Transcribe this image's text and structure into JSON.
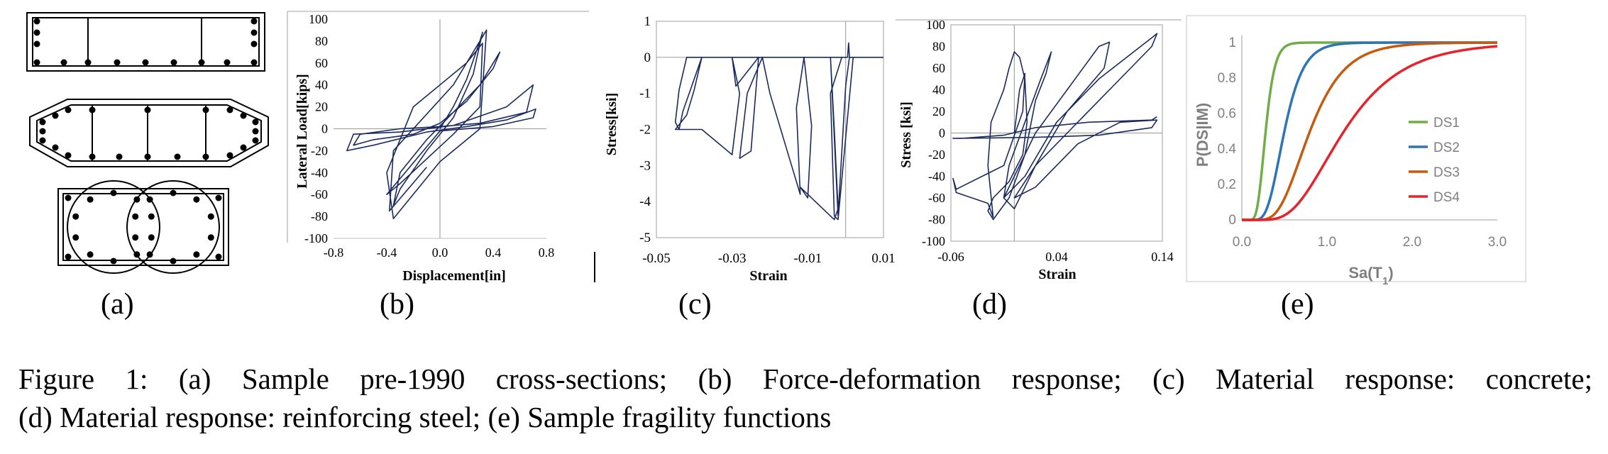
{
  "panels": {
    "a": {
      "label": "(a)"
    },
    "b": {
      "label": "(b)"
    },
    "c": {
      "label": "(c)"
    },
    "d": {
      "label": "(d)"
    },
    "e": {
      "label": "(e)"
    }
  },
  "caption": {
    "line1": "Figure 1: (a) Sample pre-1990 cross-sections; (b) Force-deformation response; (c) Material response: concrete;",
    "line2": "(d) Material response: reinforcing steel; (e) Sample fragility functions"
  },
  "colors": {
    "hysteresis": "#1b2a5e",
    "ds1": "#70ad47",
    "ds2": "#2e75b6",
    "ds3": "#c55a11",
    "ds4": "#e8222a"
  },
  "chart_data": [
    {
      "id": "b",
      "type": "line",
      "xlabel": "Displacement[in]",
      "ylabel": "Lateral Load[kips]",
      "xlim": [
        -0.8,
        0.8
      ],
      "ylim": [
        -100,
        100
      ],
      "xticks": [
        "-0.8",
        "-0.4",
        "0.0",
        "0.4",
        "0.8"
      ],
      "yticks": [
        "100",
        "80",
        "60",
        "40",
        "20",
        "0",
        "-20",
        "-40",
        "-60",
        "-80",
        "-100"
      ],
      "series": [
        {
          "x": [
            0,
            0.1,
            0.2,
            0.3,
            0.32,
            0.25,
            0.1,
            -0.1,
            -0.3,
            -0.35,
            -0.3,
            -0.1,
            0.1,
            0.3,
            0.45,
            0.4,
            0.2,
            0,
            -0.2,
            -0.5,
            -0.65,
            -0.6,
            -0.3,
            0,
            0.3,
            0.65,
            0.7,
            0.5,
            0.1,
            -0.3,
            -0.65,
            -0.7,
            -0.5,
            -0.1,
            0.2,
            0.5,
            0.72,
            0.7,
            0.4,
            0,
            -0.4,
            -0.3,
            0.1,
            0.3,
            0.32,
            0.2,
            -0.2,
            -0.4,
            -0.35,
            0,
            0.3,
            0.35,
            0.1,
            -0.35,
            -0.38,
            -0.1
          ],
          "y": [
            0,
            20,
            45,
            80,
            88,
            50,
            10,
            -20,
            -55,
            -70,
            -40,
            -10,
            15,
            40,
            70,
            55,
            25,
            5,
            -5,
            -10,
            -15,
            -5,
            0,
            2,
            5,
            15,
            40,
            20,
            3,
            -3,
            -5,
            -20,
            -15,
            -3,
            2,
            8,
            18,
            10,
            2,
            -2,
            -60,
            -50,
            -5,
            20,
            78,
            60,
            20,
            -40,
            -82,
            -30,
            0,
            90,
            40,
            -20,
            -75,
            -35
          ]
        }
      ]
    },
    {
      "id": "c",
      "type": "line",
      "xlabel": "Strain",
      "ylabel": "Stress[ksi]",
      "xlim": [
        -0.05,
        0.01
      ],
      "ylim": [
        -5,
        1
      ],
      "xticks": [
        "-0.05",
        "-0.03",
        "-0.01",
        "0.01"
      ],
      "yticks": [
        "1",
        "0",
        "-1",
        "-2",
        "-3",
        "-4",
        "-5"
      ],
      "series": [
        {
          "x": [
            0.01,
            0.002,
            0.001,
            0.0008,
            0.0005,
            0,
            -0.002,
            -0.042,
            -0.044,
            -0.045,
            -0.044,
            -0.043,
            -0.04,
            -0.038,
            -0.04,
            -0.042,
            -0.045,
            -0.044,
            -0.038,
            -0.03,
            -0.028,
            -0.03,
            -0.029,
            -0.023,
            -0.025,
            -0.028,
            -0.026,
            -0.022,
            -0.02,
            -0.012,
            -0.013,
            -0.011,
            -0.009,
            -0.01,
            -0.012,
            -0.008,
            -0.005,
            -0.003,
            -0.002,
            -0.003,
            -0.004,
            -0.002,
            0,
            0.001,
            0.002,
            -0.002,
            -0.003,
            -0.004,
            -0.001
          ],
          "y": [
            0,
            0,
            0,
            0.4,
            0,
            0,
            0,
            0,
            -0.9,
            -1.8,
            -2.0,
            -1.5,
            -0.6,
            0,
            -0.9,
            -1.6,
            -2.0,
            -2.0,
            -2.0,
            -2.7,
            -1.0,
            0,
            -0.8,
            0,
            -2.6,
            -2.8,
            -1.0,
            0,
            -1.0,
            -3.8,
            -1.4,
            0,
            -1.9,
            -3.9,
            -3.6,
            -4.0,
            -4.3,
            -4.5,
            -4.2,
            -2.0,
            0,
            -4.4,
            -0.8,
            0,
            0,
            -4.5,
            -4.4,
            -1.0,
            0
          ]
        }
      ]
    },
    {
      "id": "d",
      "type": "line",
      "xlabel": "Strain",
      "ylabel": "Stress [ksi]",
      "xlim": [
        -0.06,
        0.14
      ],
      "ylim": [
        -100,
        100
      ],
      "xticks": [
        "-0.06",
        "0.04",
        "0.14"
      ],
      "yticks": [
        "100",
        "80",
        "60",
        "40",
        "20",
        "0",
        "-20",
        "-40",
        "-60",
        "-80",
        "-100"
      ],
      "series": [
        {
          "x": [
            0,
            0.005,
            0.01,
            0.008,
            -0.01,
            -0.055,
            -0.058,
            -0.055,
            -0.04,
            -0.025,
            -0.02,
            -0.025,
            -0.022,
            -0.01,
            -0.005,
            0,
            0.005,
            0.01,
            0.012,
            0.008,
            -0.005,
            -0.02,
            -0.025,
            -0.02,
            -0.005,
            0.01,
            0.02,
            0.03,
            0.035,
            0.025,
            0.01,
            -0.005,
            -0.01,
            0,
            0.02,
            0.05,
            0.085,
            0.09,
            0.08,
            0.05,
            0.02,
            0,
            -0.01,
            0.01,
            0.04,
            0.08,
            0.13,
            0.135,
            0.13,
            0.09,
            0.05,
            0.02,
            0,
            0.02,
            0.06,
            0.1,
            0.135,
            0.13,
            0.08,
            0.02,
            -0.058,
            -0.05,
            -0.01,
            0.02,
            0.07,
            0.13,
            0.135
          ],
          "y": [
            0,
            40,
            55,
            20,
            -30,
            -52,
            -42,
            -55,
            -60,
            -65,
            -78,
            -30,
            10,
            40,
            60,
            75,
            70,
            50,
            10,
            -20,
            -45,
            -60,
            -72,
            -80,
            -60,
            -20,
            30,
            55,
            75,
            50,
            10,
            -30,
            -60,
            -70,
            -30,
            20,
            60,
            84,
            80,
            40,
            0,
            -40,
            -60,
            -40,
            10,
            50,
            88,
            92,
            80,
            40,
            0,
            -30,
            -60,
            -50,
            -10,
            10,
            12,
            5,
            -2,
            -4,
            -5,
            -5,
            -2,
            5,
            10,
            12,
            15
          ]
        }
      ]
    },
    {
      "id": "e",
      "type": "line",
      "xlabel": "Sa(T1)",
      "ylabel": "P(DS|IM)",
      "xlim": [
        0,
        3
      ],
      "ylim": [
        0,
        1
      ],
      "xticks": [
        "0.0",
        "1.0",
        "2.0",
        "3.0"
      ],
      "yticks": [
        "1",
        "0.8",
        "0.6",
        "0.4",
        "0.2",
        "0"
      ],
      "legend_position": "right",
      "series": [
        {
          "name": "DS1",
          "median": 0.28,
          "beta": 0.3
        },
        {
          "name": "DS2",
          "median": 0.5,
          "beta": 0.35
        },
        {
          "name": "DS3",
          "median": 0.8,
          "beta": 0.4
        },
        {
          "name": "DS4",
          "median": 1.2,
          "beta": 0.45
        }
      ]
    }
  ]
}
